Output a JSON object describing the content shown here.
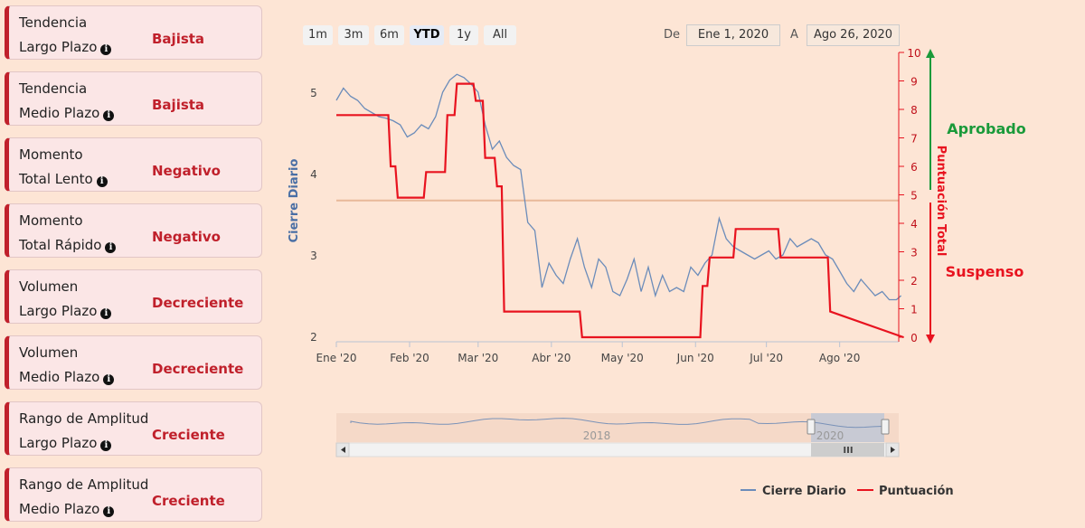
{
  "indicators": [
    {
      "line1": "Tendencia",
      "line2": "Largo Plazo",
      "value": "Bajista"
    },
    {
      "line1": "Tendencia",
      "line2": "Medio Plazo",
      "value": "Bajista"
    },
    {
      "line1": "Momento",
      "line2": "Total Lento",
      "value": "Negativo"
    },
    {
      "line1": "Momento",
      "line2": "Total Rápido",
      "value": "Negativo"
    },
    {
      "line1": "Volumen",
      "line2": "Largo Plazo",
      "value": "Decreciente"
    },
    {
      "line1": "Volumen",
      "line2": "Medio Plazo",
      "value": "Decreciente"
    },
    {
      "line1": "Rango de Amplitud",
      "line2": "Largo Plazo",
      "value": "Creciente"
    },
    {
      "line1": "Rango de Amplitud",
      "line2": "Medio Plazo",
      "value": "Creciente"
    }
  ],
  "range_selector": {
    "buttons": [
      "1m",
      "3m",
      "6m",
      "YTD",
      "1y",
      "All"
    ],
    "active": "YTD",
    "from_label": "De",
    "from_value": "Ene 1, 2020",
    "to_label": "A",
    "to_value": "Ago 26, 2020"
  },
  "zones": {
    "upper": "Aprobado",
    "lower": "Suspenso"
  },
  "navigator": {
    "year_labels": [
      "2018",
      "2020"
    ],
    "scroll_grip": "III"
  },
  "colors": {
    "price_line": "#6b8cba",
    "score_line": "#e8131f",
    "threshold_line": "#e8b89a",
    "approved": "#1a9a3a",
    "failed": "#e8131f",
    "indicator_value": "#c0202b"
  },
  "chart_data": {
    "type": "line",
    "xlabel": "",
    "x_ticks": [
      "Ene '20",
      "Feb '20",
      "Mar '20",
      "Abr '20",
      "May '20",
      "Jun '20",
      "Jul '20",
      "Ago '20"
    ],
    "x_range": [
      0,
      238
    ],
    "y_left": {
      "label": "Cierre Diario",
      "ticks": [
        2,
        3,
        4,
        5
      ],
      "range": [
        2,
        5.3
      ]
    },
    "y_right": {
      "label": "Puntuación Total",
      "ticks": [
        0,
        1,
        2,
        3,
        4,
        5,
        6,
        7,
        8,
        9,
        10
      ],
      "range": [
        0,
        10
      ]
    },
    "threshold": 4.8,
    "legend": {
      "position": "bottom-right",
      "entries": [
        "Cierre Diario",
        "Puntuación"
      ]
    },
    "series": [
      {
        "name": "Cierre Diario",
        "axis": "left",
        "x": [
          0,
          3,
          6,
          9,
          12,
          15,
          18,
          21,
          24,
          27,
          30,
          33,
          36,
          39,
          42,
          45,
          48,
          51,
          54,
          57,
          60,
          63,
          66,
          69,
          72,
          75,
          78,
          81,
          84,
          87,
          90,
          93,
          96,
          99,
          102,
          105,
          108,
          111,
          114,
          117,
          120,
          123,
          126,
          129,
          132,
          135,
          138,
          141,
          144,
          147,
          150,
          153,
          156,
          159,
          162,
          165,
          168,
          171,
          174,
          177,
          180,
          183,
          186,
          189,
          192,
          195,
          198,
          201,
          204,
          207,
          210,
          213,
          216,
          219,
          222,
          225,
          228,
          231,
          234,
          237,
          239
        ],
        "y": [
          4.9,
          5.05,
          4.95,
          4.9,
          4.8,
          4.75,
          4.7,
          4.68,
          4.65,
          4.6,
          4.45,
          4.5,
          4.6,
          4.55,
          4.7,
          5.0,
          5.15,
          5.22,
          5.18,
          5.1,
          5.0,
          4.6,
          4.3,
          4.4,
          4.2,
          4.1,
          4.05,
          3.4,
          3.3,
          2.6,
          2.9,
          2.75,
          2.65,
          2.95,
          3.2,
          2.85,
          2.6,
          2.95,
          2.85,
          2.55,
          2.5,
          2.7,
          2.95,
          2.55,
          2.85,
          2.5,
          2.75,
          2.55,
          2.6,
          2.55,
          2.85,
          2.75,
          2.9,
          3.0,
          3.45,
          3.2,
          3.1,
          3.05,
          3.0,
          2.95,
          3.0,
          3.05,
          2.95,
          3.0,
          3.2,
          3.1,
          3.15,
          3.2,
          3.15,
          3.0,
          2.95,
          2.8,
          2.65,
          2.55,
          2.7,
          2.6,
          2.5,
          2.55,
          2.45,
          2.45,
          2.5
        ]
      },
      {
        "name": "Puntuación",
        "axis": "right",
        "x": [
          0,
          22,
          23,
          25,
          26,
          37,
          38,
          46,
          47,
          50,
          51,
          58,
          59,
          62,
          63,
          67,
          68,
          70,
          71,
          103,
          104,
          154,
          155,
          157,
          158,
          168,
          169,
          187,
          188,
          208,
          209,
          240
        ],
        "y": [
          7.8,
          7.8,
          6.0,
          6.0,
          4.9,
          4.9,
          5.8,
          5.8,
          7.8,
          7.8,
          8.9,
          8.9,
          8.3,
          8.3,
          6.3,
          6.3,
          5.3,
          5.3,
          0.9,
          0.9,
          0.0,
          0.0,
          1.8,
          1.8,
          2.8,
          2.8,
          3.8,
          3.8,
          2.8,
          2.8,
          0.9,
          0.0
        ]
      }
    ]
  }
}
